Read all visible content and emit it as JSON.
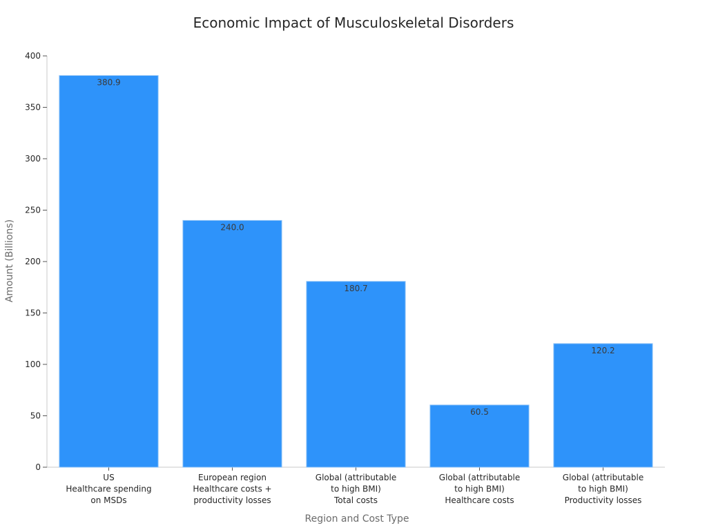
{
  "chart_data": {
    "type": "bar",
    "title": "Economic Impact of Musculoskeletal Disorders",
    "xlabel": "Region and Cost Type",
    "ylabel": "Amount (Billions)",
    "ylim": [
      0,
      400
    ],
    "yticks": [
      0,
      50,
      100,
      150,
      200,
      250,
      300,
      350,
      400
    ],
    "categories": [
      [
        "US",
        "Healthcare spending",
        "on MSDs"
      ],
      [
        "European region",
        "Healthcare costs +",
        "productivity losses"
      ],
      [
        "Global (attributable",
        "to high BMI)",
        "Total costs"
      ],
      [
        "Global (attributable",
        "to high BMI)",
        "Healthcare costs"
      ],
      [
        "Global (attributable",
        "to high BMI)",
        "Productivity losses"
      ]
    ],
    "values": [
      380.9,
      240.0,
      180.7,
      60.5,
      120.2
    ],
    "data_labels": [
      "380.9",
      "240.0",
      "180.7",
      "60.5",
      "120.2"
    ],
    "bar_color": "#2e93fa",
    "grid": false,
    "legend": "none"
  }
}
